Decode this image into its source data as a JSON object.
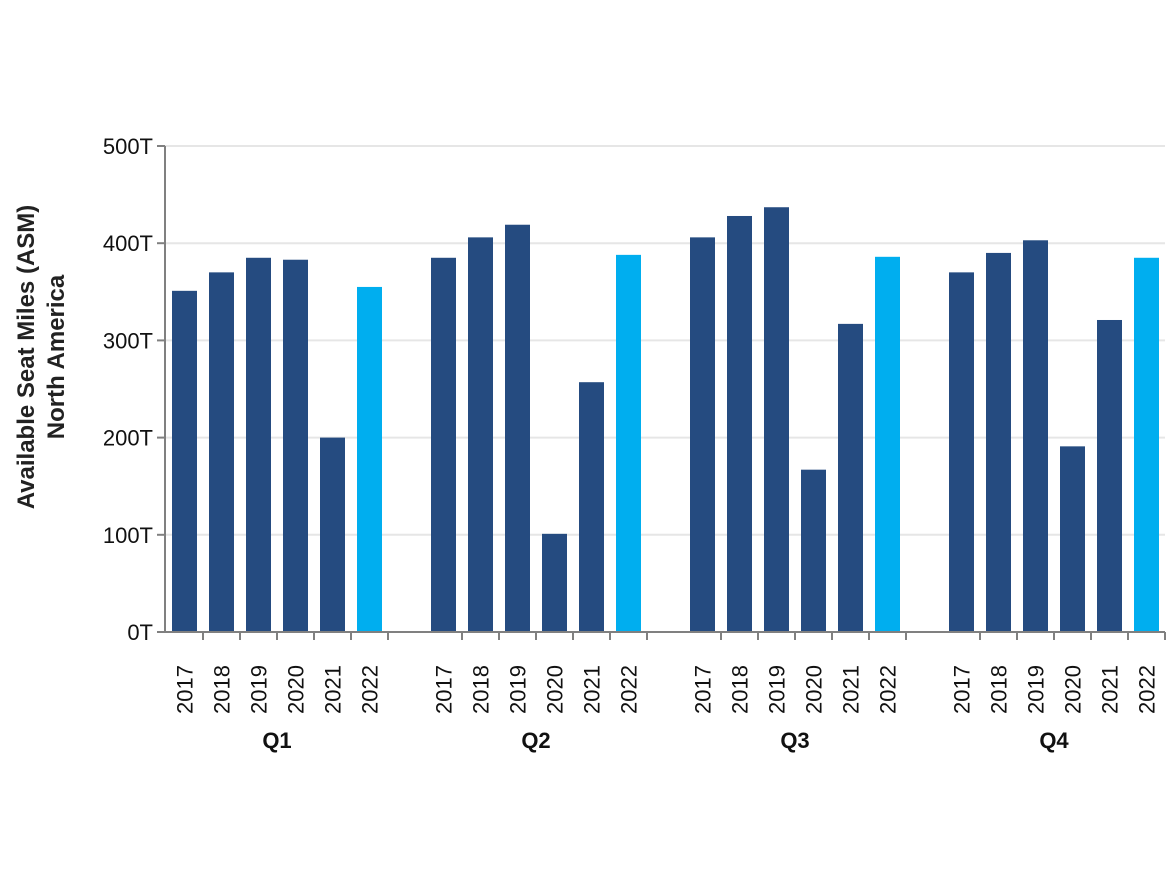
{
  "chart_data": {
    "type": "bar",
    "title": "",
    "ylabel_lines": [
      "Available Seat Miles (ASM)",
      "North America"
    ],
    "xlabel": "",
    "ylim": [
      0,
      500
    ],
    "yticks": [
      0,
      100,
      200,
      300,
      400,
      500
    ],
    "ytick_labels": [
      "0T",
      "100T",
      "200T",
      "300T",
      "400T",
      "500T"
    ],
    "grid": true,
    "colors": {
      "default": "#254b80",
      "highlight": "#00aeef",
      "grid": "#e6e6e6",
      "axis": "#808080"
    },
    "highlight_category": "2022",
    "groups": [
      {
        "label": "Q1",
        "categories": [
          "2017",
          "2018",
          "2019",
          "2020",
          "2021",
          "2022"
        ],
        "values": [
          351,
          370,
          385,
          383,
          200,
          355
        ]
      },
      {
        "label": "Q2",
        "categories": [
          "2017",
          "2018",
          "2019",
          "2020",
          "2021",
          "2022"
        ],
        "values": [
          385,
          406,
          419,
          101,
          257,
          388
        ]
      },
      {
        "label": "Q3",
        "categories": [
          "2017",
          "2018",
          "2019",
          "2020",
          "2021",
          "2022"
        ],
        "values": [
          406,
          428,
          437,
          167,
          317,
          386
        ]
      },
      {
        "label": "Q4",
        "categories": [
          "2017",
          "2018",
          "2019",
          "2020",
          "2021",
          "2022"
        ],
        "values": [
          370,
          390,
          403,
          191,
          321,
          385
        ]
      }
    ]
  }
}
